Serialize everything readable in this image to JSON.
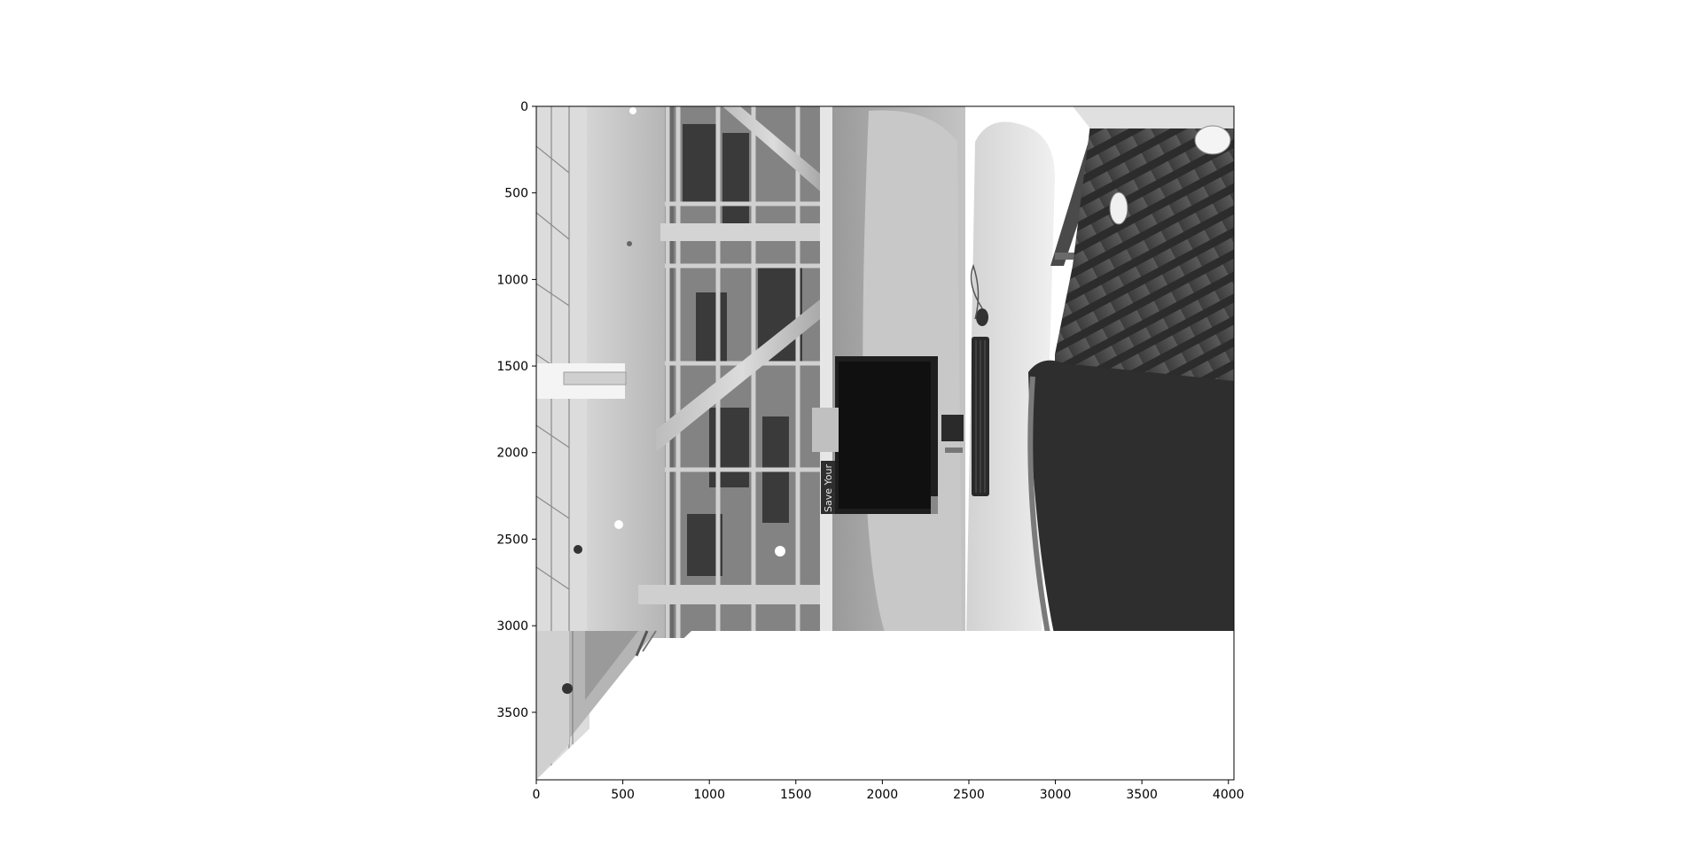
{
  "figure": {
    "x_axis": {
      "ticks": [
        0,
        500,
        1000,
        1500,
        2000,
        2500,
        3000,
        3500,
        4000
      ],
      "range": [
        0,
        4032
      ]
    },
    "y_axis": {
      "ticks": [
        0,
        500,
        1000,
        1500,
        2000,
        2500,
        3000,
        3500
      ],
      "range": [
        0,
        3890
      ],
      "inverted": true
    },
    "image": {
      "mode": "grayscale",
      "orientation": "rotated 90 degrees",
      "filled_extent_y": 3024,
      "subject": "computer workstation with monitor, keyboard, mouse and office chair by a large window",
      "sign_text": "Save Your Work"
    }
  }
}
